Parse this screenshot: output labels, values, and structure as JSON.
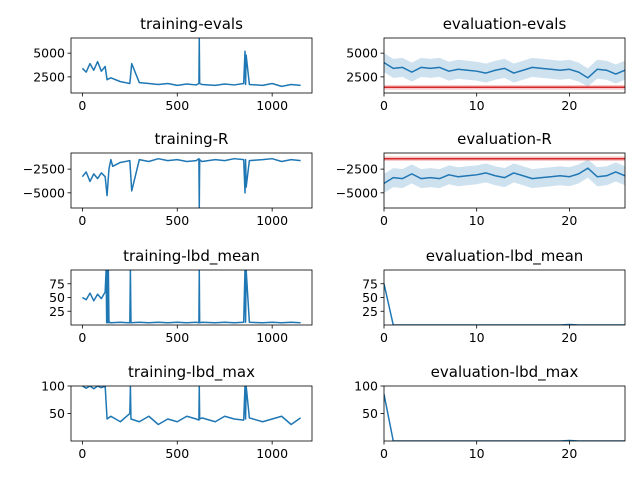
{
  "chart_data": [
    {
      "type": "line",
      "title": "training-evals",
      "xlim": [
        -60,
        1210
      ],
      "ylim": [
        800,
        6600
      ],
      "xticks": [
        0,
        500,
        1000
      ],
      "yticks": [
        2500,
        5000
      ],
      "xticklabels": [
        "0",
        "500",
        "1000"
      ],
      "yticklabels": [
        "2500",
        "5000"
      ],
      "series": [
        {
          "color": "#1f77b4",
          "x": [
            0,
            20,
            40,
            60,
            80,
            100,
            120,
            130,
            150,
            200,
            250,
            260,
            300,
            350,
            400,
            450,
            500,
            550,
            600,
            614,
            616,
            618,
            630,
            700,
            750,
            800,
            850,
            857,
            860,
            863,
            880,
            950,
            1000,
            1050,
            1100,
            1150
          ],
          "y": [
            3400,
            3000,
            3900,
            3200,
            4100,
            3100,
            3600,
            2200,
            2400,
            2000,
            1800,
            3900,
            1900,
            1800,
            1700,
            1800,
            1600,
            1750,
            1650,
            1800,
            6600,
            1800,
            1700,
            1600,
            1750,
            1650,
            1800,
            5200,
            1700,
            4800,
            1700,
            1600,
            1800,
            1500,
            1700,
            1600
          ]
        }
      ]
    },
    {
      "type": "line",
      "title": "evaluation-evals",
      "xlim": [
        0,
        26
      ],
      "ylim": [
        800,
        6600
      ],
      "xticks": [
        0,
        10,
        20
      ],
      "yticks": [
        2500,
        5000
      ],
      "xticklabels": [
        "0",
        "10",
        "20"
      ],
      "yticklabels": [
        "2500",
        "5000"
      ],
      "series": [
        {
          "color": "#1f77b4",
          "x": [
            0,
            1,
            2,
            3,
            4,
            5,
            6,
            7,
            8,
            9,
            10,
            11,
            12,
            13,
            14,
            15,
            16,
            17,
            18,
            19,
            20,
            21,
            22,
            23,
            24,
            25,
            26
          ],
          "y": [
            4000,
            3400,
            3500,
            3000,
            3500,
            3400,
            3500,
            3100,
            3300,
            3200,
            3100,
            2900,
            3200,
            3400,
            2900,
            3200,
            3500,
            3400,
            3300,
            3200,
            3300,
            3000,
            2400,
            3300,
            3200,
            2800,
            3200
          ],
          "band_low": [
            3000,
            2400,
            2500,
            2000,
            2500,
            2400,
            2500,
            2100,
            2300,
            2200,
            2100,
            1900,
            2200,
            2400,
            1900,
            2200,
            2500,
            2400,
            2300,
            2200,
            2300,
            2000,
            1500,
            2300,
            2200,
            1800,
            2200
          ],
          "band_high": [
            5000,
            4400,
            4500,
            4000,
            4500,
            4400,
            4500,
            4100,
            4300,
            4200,
            4100,
            3900,
            4200,
            4400,
            3900,
            4200,
            4500,
            4400,
            4300,
            4200,
            4300,
            4000,
            3400,
            4300,
            4200,
            3800,
            4200
          ]
        },
        {
          "color": "#d62728",
          "x": [
            0,
            26
          ],
          "y": [
            1400,
            1400
          ],
          "band_low": [
            1150,
            1150
          ],
          "band_high": [
            1650,
            1650
          ]
        }
      ]
    },
    {
      "type": "line",
      "title": "training-R",
      "xlim": [
        -60,
        1210
      ],
      "ylim": [
        -6600,
        -800
      ],
      "xticks": [
        0,
        500,
        1000
      ],
      "yticks": [
        -5000,
        -2500
      ],
      "xticklabels": [
        "0",
        "500",
        "1000"
      ],
      "yticklabels": [
        "−5000",
        "−2500"
      ],
      "series": [
        {
          "color": "#1f77b4",
          "x": [
            0,
            20,
            40,
            60,
            80,
            100,
            120,
            130,
            140,
            150,
            160,
            200,
            250,
            260,
            300,
            350,
            400,
            450,
            500,
            550,
            600,
            614,
            616,
            618,
            630,
            700,
            750,
            800,
            850,
            857,
            860,
            863,
            880,
            950,
            1000,
            1050,
            1100,
            1150
          ],
          "y": [
            -3300,
            -2800,
            -3800,
            -3000,
            -3500,
            -2900,
            -3300,
            -5300,
            -2500,
            -1500,
            -2200,
            -1800,
            -1600,
            -4800,
            -1500,
            -1700,
            -1400,
            -1600,
            -1500,
            -1700,
            -1600,
            -1400,
            -6600,
            -1500,
            -1700,
            -1500,
            -1600,
            -1400,
            -1500,
            -5000,
            -1500,
            -4400,
            -1600,
            -1500,
            -1400,
            -1700,
            -1500,
            -1600
          ]
        }
      ]
    },
    {
      "type": "line",
      "title": "evaluation-R",
      "xlim": [
        0,
        26
      ],
      "ylim": [
        -6600,
        -800
      ],
      "xticks": [
        0,
        10,
        20
      ],
      "yticks": [
        -5000,
        -2500
      ],
      "xticklabels": [
        "0",
        "10",
        "20"
      ],
      "yticklabels": [
        "−5000",
        "−2500"
      ],
      "series": [
        {
          "color": "#1f77b4",
          "x": [
            0,
            1,
            2,
            3,
            4,
            5,
            6,
            7,
            8,
            9,
            10,
            11,
            12,
            13,
            14,
            15,
            16,
            17,
            18,
            19,
            20,
            21,
            22,
            23,
            24,
            25,
            26
          ],
          "y": [
            -4000,
            -3400,
            -3500,
            -3000,
            -3500,
            -3400,
            -3500,
            -3100,
            -3300,
            -3200,
            -3100,
            -2900,
            -3200,
            -3400,
            -2900,
            -3200,
            -3500,
            -3400,
            -3300,
            -3200,
            -3300,
            -3000,
            -2400,
            -3300,
            -3200,
            -2800,
            -3200
          ],
          "band_low": [
            -5000,
            -4400,
            -4500,
            -4000,
            -4500,
            -4400,
            -4500,
            -4100,
            -4300,
            -4200,
            -4100,
            -3900,
            -4200,
            -4400,
            -3900,
            -4200,
            -4500,
            -4400,
            -4300,
            -4200,
            -4300,
            -4000,
            -3400,
            -4300,
            -4200,
            -3800,
            -4200
          ],
          "band_high": [
            -3000,
            -2400,
            -2500,
            -2000,
            -2500,
            -2400,
            -2500,
            -2100,
            -2300,
            -2200,
            -2100,
            -1900,
            -2200,
            -2400,
            -1900,
            -2200,
            -2500,
            -2400,
            -2300,
            -2200,
            -2300,
            -2000,
            -1500,
            -2300,
            -2200,
            -1800,
            -2200
          ]
        },
        {
          "color": "#d62728",
          "x": [
            0,
            26
          ],
          "y": [
            -1400,
            -1400
          ],
          "band_low": [
            -1650,
            -1650
          ],
          "band_high": [
            -1150,
            -1150
          ]
        }
      ]
    },
    {
      "type": "line",
      "title": "training-lbd_mean",
      "xlim": [
        -60,
        1210
      ],
      "ylim": [
        0,
        100
      ],
      "xticks": [
        0,
        500,
        1000
      ],
      "yticks": [
        25,
        50,
        75
      ],
      "xticklabels": [
        "0",
        "500",
        "1000"
      ],
      "yticklabels": [
        "25",
        "50",
        "75"
      ],
      "series": [
        {
          "color": "#1f77b4",
          "x": [
            0,
            20,
            40,
            60,
            80,
            100,
            120,
            125,
            128,
            131,
            134,
            137,
            140,
            145,
            150,
            200,
            250,
            253,
            256,
            300,
            350,
            400,
            450,
            500,
            550,
            600,
            614,
            616,
            618,
            630,
            700,
            750,
            800,
            850,
            857,
            860,
            863,
            880,
            950,
            1000,
            1050,
            1100,
            1150
          ],
          "y": [
            50,
            46,
            58,
            44,
            56,
            48,
            60,
            100,
            4,
            100,
            4,
            100,
            4,
            5,
            4,
            5,
            4,
            100,
            4,
            5,
            4,
            5,
            4,
            5,
            4,
            5,
            4,
            100,
            4,
            5,
            4,
            5,
            4,
            5,
            100,
            5,
            100,
            5,
            4,
            5,
            4,
            5,
            4
          ]
        }
      ]
    },
    {
      "type": "line",
      "title": "evaluation-lbd_mean",
      "xlim": [
        0,
        26
      ],
      "ylim": [
        0,
        100
      ],
      "xticks": [
        0,
        10,
        20
      ],
      "yticks": [
        25,
        50,
        75
      ],
      "xticklabels": [
        "0",
        "10",
        "20"
      ],
      "yticklabels": [
        "25",
        "50",
        "75"
      ],
      "series": [
        {
          "color": "#1f77b4",
          "x": [
            0,
            1,
            19,
            20,
            21,
            26
          ],
          "y": [
            75,
            0,
            0,
            1,
            0,
            0
          ]
        }
      ]
    },
    {
      "type": "line",
      "title": "training-lbd_max",
      "xlim": [
        -60,
        1210
      ],
      "ylim": [
        0,
        100
      ],
      "xticks": [
        0,
        500,
        1000
      ],
      "yticks": [
        50,
        100
      ],
      "xticklabels": [
        "0",
        "500",
        "1000"
      ],
      "yticklabels": [
        "50",
        "100"
      ],
      "series": [
        {
          "color": "#1f77b4",
          "x": [
            0,
            20,
            40,
            60,
            80,
            100,
            120,
            130,
            150,
            200,
            250,
            253,
            256,
            300,
            350,
            400,
            450,
            500,
            550,
            600,
            614,
            616,
            618,
            630,
            700,
            750,
            800,
            850,
            857,
            860,
            863,
            880,
            950,
            1000,
            1050,
            1100,
            1150
          ],
          "y": [
            100,
            96,
            100,
            95,
            100,
            97,
            100,
            40,
            45,
            35,
            50,
            100,
            40,
            35,
            45,
            30,
            40,
            35,
            45,
            40,
            38,
            100,
            40,
            42,
            35,
            45,
            40,
            38,
            100,
            40,
            100,
            42,
            35,
            40,
            45,
            30,
            42
          ]
        }
      ]
    },
    {
      "type": "line",
      "title": "evaluation-lbd_max",
      "xlim": [
        0,
        26
      ],
      "ylim": [
        0,
        100
      ],
      "xticks": [
        0,
        10,
        20
      ],
      "yticks": [
        50,
        100
      ],
      "xticklabels": [
        "0",
        "10",
        "20"
      ],
      "yticklabels": [
        "50",
        "100"
      ],
      "series": [
        {
          "color": "#1f77b4",
          "x": [
            0,
            1,
            19,
            20,
            21,
            26
          ],
          "y": [
            85,
            0,
            0,
            1,
            0,
            0
          ]
        }
      ]
    }
  ]
}
